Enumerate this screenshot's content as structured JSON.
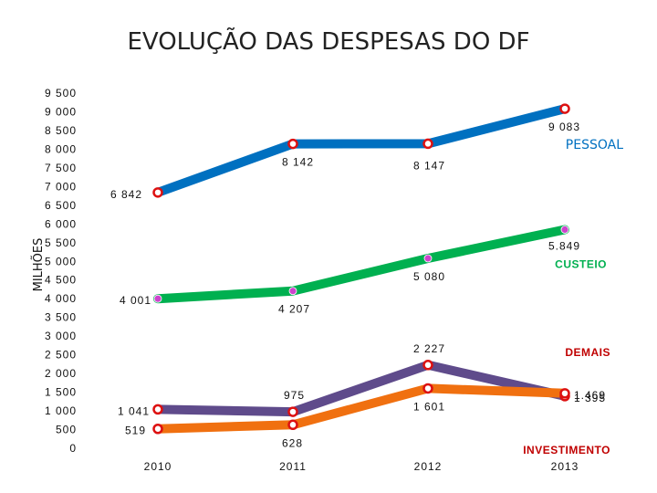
{
  "chart_data": {
    "type": "line",
    "title": "EVOLUÇÃO DAS DESPESAS DO DF",
    "ylabel": "MILHÕES",
    "xlabel": "",
    "categories": [
      "2010",
      "2011",
      "2012",
      "2013"
    ],
    "ylim": [
      0,
      9500
    ],
    "yticks": [
      0,
      500,
      1000,
      1500,
      2000,
      2500,
      3000,
      3500,
      4000,
      4500,
      5000,
      5500,
      6000,
      6500,
      7000,
      7500,
      8000,
      8500,
      9000,
      9500
    ],
    "ytick_labels": [
      "0",
      "500",
      "1 000",
      "1 500",
      "2 000",
      "2 500",
      "3 000",
      "3 500",
      "4 000",
      "4 500",
      "5 000",
      "5 500",
      "6 000",
      "6 500",
      "7 000",
      "7 500",
      "8 000",
      "8 500",
      "9 000",
      "9 500"
    ],
    "grid": false,
    "legend": "none",
    "series": [
      {
        "name": "PESSOAL",
        "color": "#0070C0",
        "marker_style": "ring",
        "values": [
          6842,
          8142,
          8147,
          9083
        ],
        "value_labels": [
          "6 842",
          "8 142",
          "8 147",
          "9 083"
        ]
      },
      {
        "name": "CUSTEIO",
        "color": "#00B050",
        "marker_style": "dot",
        "values": [
          4001,
          4207,
          5080,
          5849
        ],
        "value_labels": [
          "4 001",
          "4 207",
          "5 080",
          "5.849"
        ]
      },
      {
        "name": "DEMAIS",
        "color": "#5F4B8B",
        "marker_style": "ring",
        "values": [
          1041,
          975,
          2227,
          1395
        ],
        "value_labels": [
          "1 041",
          "975",
          "2 227",
          "1 395"
        ]
      },
      {
        "name": "INVESTIMENTO",
        "color": "#F07010",
        "marker_style": "ring",
        "values": [
          519,
          628,
          1601,
          1469
        ],
        "value_labels": [
          "519",
          "628",
          "1 601",
          "1.469"
        ]
      }
    ],
    "series_label_colors": {
      "PESSOAL": "#0070C0",
      "CUSTEIO": "#00B050",
      "DEMAIS": "#C00000",
      "INVESTIMENTO": "#C00000"
    }
  }
}
